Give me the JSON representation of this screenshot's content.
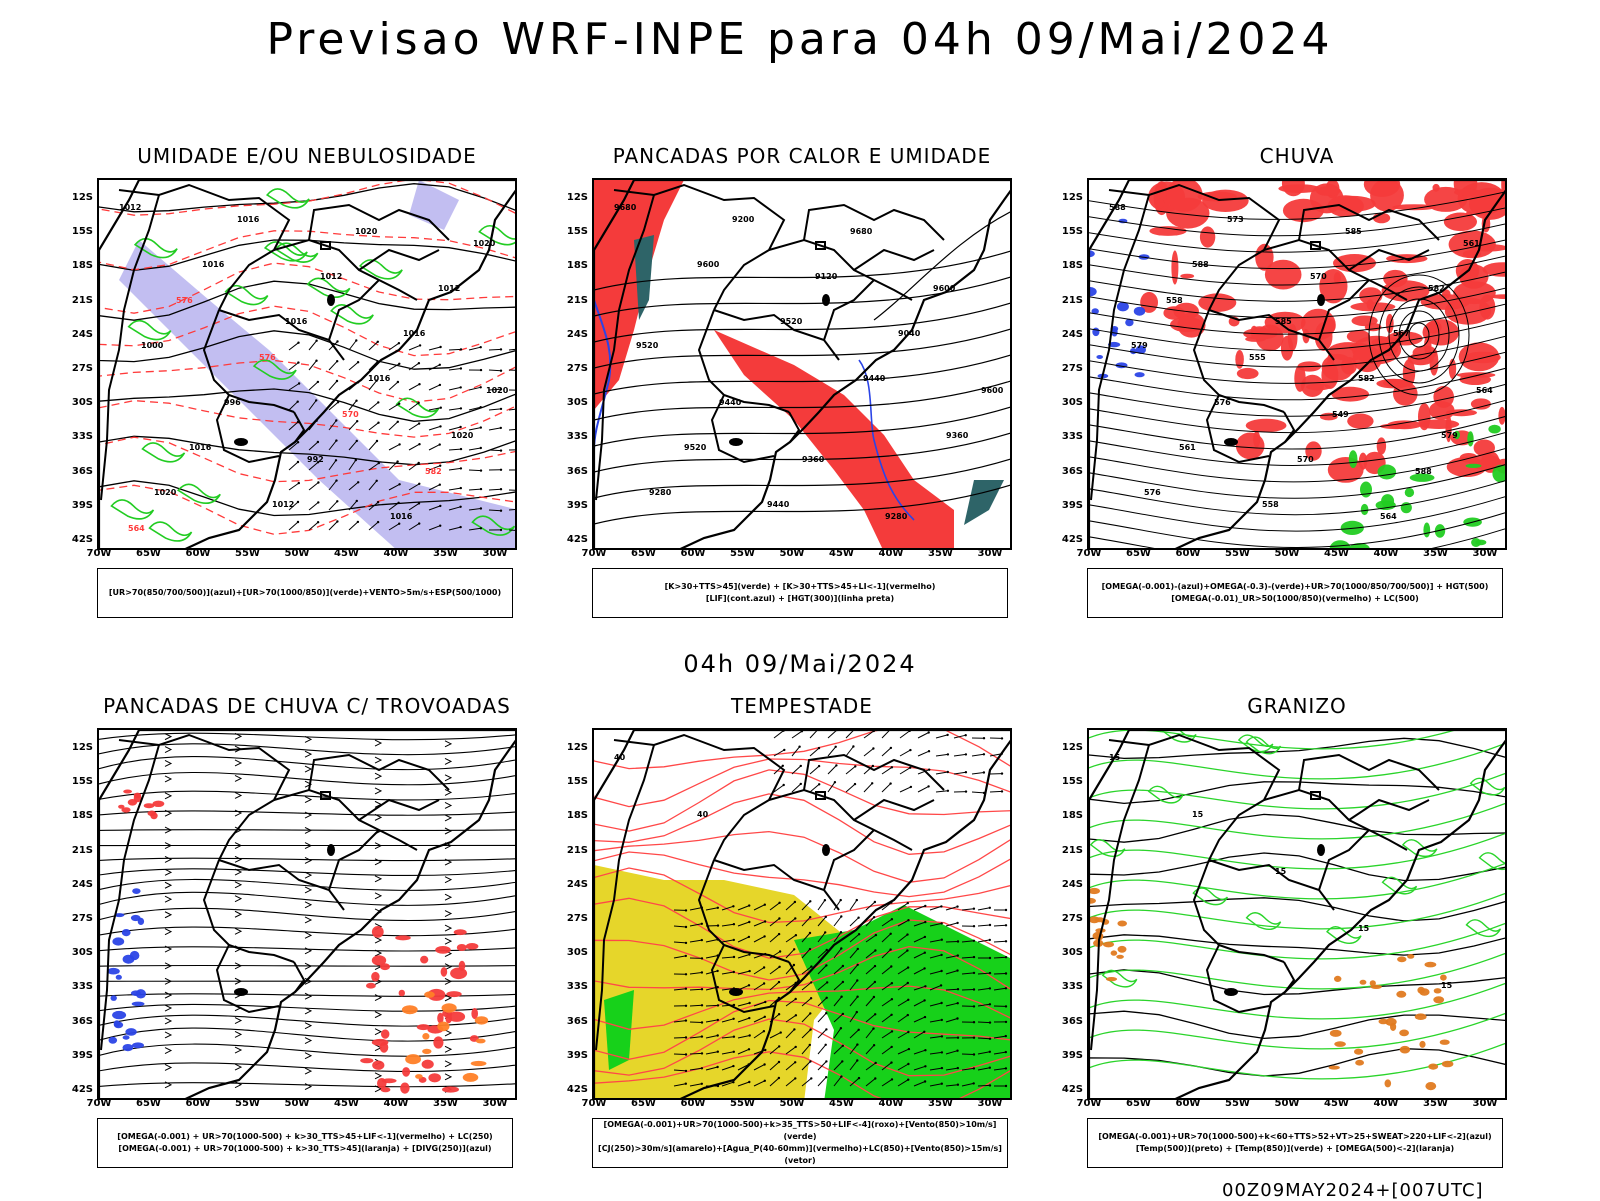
{
  "header": {
    "title": "Previsao WRF-INPE  para 04h 09/Mai/2024",
    "mid_date": "04h 09/Mai/2024",
    "footer": "00Z09MAY2024+[007UTC]"
  },
  "axes": {
    "lat_labels": [
      "12S",
      "15S",
      "18S",
      "21S",
      "24S",
      "27S",
      "30S",
      "33S",
      "36S",
      "39S",
      "42S"
    ],
    "lon_labels": [
      "70W",
      "65W",
      "60W",
      "55W",
      "50W",
      "45W",
      "40W",
      "35W",
      "30W"
    ]
  },
  "panels": [
    {
      "title": "UMIDADE E/OU NEBULOSIDADE",
      "legend": [
        "[UR>70(850/700/500)](azul)+[UR>70(1000/850)](verde)+VENTO>5m/s+ESP(500/1000)"
      ],
      "contour_labels": [
        "1012",
        "1016",
        "1016",
        "1016",
        "1020",
        "1020",
        "1016",
        "1012",
        "1016",
        "1020",
        "1016",
        "1012",
        "1020",
        "1012",
        "1000",
        "996",
        "992",
        "1016",
        "1020",
        "576",
        "576",
        "570",
        "582",
        "564"
      ]
    },
    {
      "title": "PANCADAS POR CALOR E UMIDADE",
      "legend": [
        "[K>30+TTS>45](verde) + [K>30+TTS>45+LI<-1](vermelho)",
        "[LIF](cont.azul) + [HGT(300)](linha preta)"
      ],
      "contour_labels": [
        "9680",
        "9600",
        "9520",
        "9440",
        "9360",
        "9280",
        "9200",
        "9120",
        "9040",
        "9600",
        "9520",
        "9440",
        "9680",
        "9600",
        "9520",
        "9440",
        "9360",
        "9280"
      ]
    },
    {
      "title": "CHUVA",
      "legend": [
        "[OMEGA(-0.001)-(azul)+OMEGA(-0.3)-(verde)+UR>70(1000/850/700/500)] + HGT(500)",
        "[OMEGA(-0.01)_UR>50(1000/850)(vermelho) + LC(500)"
      ],
      "contour_labels": [
        "588",
        "588",
        "585",
        "582",
        "579",
        "576",
        "573",
        "570",
        "567",
        "564",
        "561",
        "558",
        "585",
        "582",
        "579",
        "576",
        "570",
        "564",
        "561",
        "558",
        "555",
        "549",
        "588"
      ]
    },
    {
      "title": "PANCADAS DE CHUVA C/ TROVOADAS",
      "legend": [
        "[OMEGA(-0.001) + UR>70(1000-500) + k>30_TTS>45+LIF<-1](vermelho) + LC(250)",
        "[OMEGA(-0.001) + UR>70(1000-500) + k>30_TTS>45](laranja) + [DIVG(250)](azul)"
      ],
      "contour_labels": []
    },
    {
      "title": "TEMPESTADE",
      "legend": [
        "[OMEGA(-0.001)+UR>70(1000-500)+k>35_TTS>50+LIF<-4](roxo)+[Vento(850)>10m/s](verde)",
        "[CJ(250)>30m/s](amarelo)+[Agua_P(40-60mm)](vermelho)+LC(850)+[Vento(850)>15m/s](vetor)"
      ],
      "contour_labels": [
        "40",
        "40"
      ]
    },
    {
      "title": "GRANIZO",
      "legend": [
        "[OMEGA(-0.001)+UR>70(1000-500)+k<60+TTS>52+VT>25+SWEAT>220+LIF<-2](azul)",
        "[Temp(500)](preto) + [Temp(850)](verde) + [OMEGA(500)<-2](laranja)"
      ],
      "contour_labels": [
        "15",
        "15",
        "15",
        "15",
        "15"
      ]
    }
  ]
}
